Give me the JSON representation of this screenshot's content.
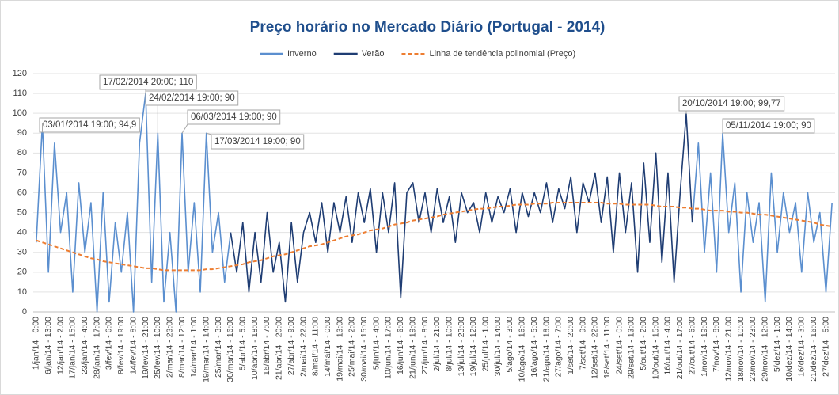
{
  "chart_data": {
    "type": "line",
    "title": "Preço horário no Mercado Diário (Portugal - 2014)",
    "categories": [
      "1/jan/14 - 0:00",
      null,
      "6/jan/14 - 13:00",
      null,
      "12/jan/14 - 2:00",
      null,
      "17/jan/14 - 15:00",
      null,
      "23/jan/14 - 4:00",
      null,
      "28/jan/14 - 17:00",
      null,
      "3/fev/14 - 6:00",
      null,
      "8/fev/14 - 19:00",
      null,
      "14/fev/14 - 8:00",
      null,
      "19/fev/14 - 21:00",
      null,
      "25/fev/14 - 10:00",
      null,
      "2/mar/14 - 23:00",
      null,
      "8/mar/14 - 12:00",
      null,
      "14/mar/14 - 1:00",
      null,
      "19/mar/14 - 14:00",
      null,
      "25/mar/14 - 3:00",
      null,
      "30/mar/14 - 16:00",
      null,
      "5/abr/14 - 5:00",
      null,
      "10/abr/14 - 18:00",
      null,
      "16/abr/14 - 7:00",
      null,
      "21/abr/14 - 20:00",
      null,
      "27/abr/14 - 9:00",
      null,
      "2/mai/14 - 22:00",
      null,
      "8/mai/14 - 11:00",
      null,
      "14/mai/14 - 0:00",
      null,
      "19/mai/14 - 13:00",
      null,
      "25/mai/14 - 2:00",
      null,
      "30/mai/14 - 15:00",
      null,
      "5/jun/14 - 4:00",
      null,
      "10/jun/14 - 17:00",
      null,
      "16/jun/14 - 6:00",
      null,
      "21/jun/14 - 19:00",
      null,
      "27/jun/14 - 8:00",
      null,
      "2/jul/14 - 21:00",
      null,
      "8/jul/14 - 10:00",
      null,
      "13/jul/14 - 23:00",
      null,
      "19/jul/14 - 12:00",
      null,
      "25/jul/14 - 1:00",
      null,
      "30/jul/14 - 14:00",
      null,
      "5/ago/14 - 3:00",
      null,
      "10/ago/14 - 16:00",
      null,
      "16/ago/14 - 5:00",
      null,
      "21/ago/14 - 18:00",
      null,
      "27/ago/14 - 7:00",
      null,
      "1/set/14 - 20:00",
      null,
      "7/set/14 - 9:00",
      null,
      "12/set/14 - 22:00",
      null,
      "18/set/14 - 11:00",
      null,
      "24/set/14 - 0:00",
      null,
      "29/set/14 - 13:00",
      null,
      "5/out/14 - 2:00",
      null,
      "10/out/14 - 15:00",
      null,
      "16/out/14 - 4:00",
      null,
      "21/out/14 - 17:00",
      null,
      "27/out/14 - 6:00",
      null,
      "1/nov/14 - 19:00",
      null,
      "7/nov/14 - 8:00",
      null,
      "12/nov/14 - 21:00",
      null,
      "18/nov/14 - 10:00",
      null,
      "23/nov/14 - 23:00",
      null,
      "29/nov/14 - 12:00",
      null,
      "5/dez/14 - 1:00",
      null,
      "10/dez/14 - 14:00",
      null,
      "16/dez/14 - 3:00",
      null,
      "21/dez/14 - 16:00",
      null,
      "27/dez/14 - 5:00",
      null
    ],
    "series": [
      {
        "name": "Inverno",
        "color": "#5b8fcf",
        "dash": false,
        "values": [
          35,
          94.9,
          20,
          85,
          40,
          60,
          10,
          65,
          30,
          55,
          0,
          60,
          5,
          45,
          20,
          50,
          0,
          85,
          110,
          15,
          90,
          5,
          40,
          0,
          90,
          20,
          55,
          10,
          90,
          30,
          50,
          15,
          40,
          null,
          null,
          null,
          null,
          null,
          null,
          null,
          null,
          null,
          null,
          null,
          null,
          null,
          null,
          null,
          null,
          null,
          null,
          null,
          null,
          null,
          null,
          null,
          null,
          null,
          null,
          null,
          null,
          null,
          null,
          null,
          null,
          null,
          null,
          null,
          null,
          null,
          null,
          null,
          null,
          null,
          null,
          null,
          null,
          null,
          null,
          null,
          null,
          null,
          null,
          null,
          null,
          null,
          null,
          null,
          null,
          null,
          null,
          null,
          null,
          null,
          null,
          null,
          null,
          null,
          null,
          null,
          null,
          null,
          null,
          null,
          null,
          null,
          null,
          null,
          45,
          85,
          30,
          70,
          20,
          90,
          40,
          65,
          10,
          60,
          35,
          55,
          5,
          70,
          30,
          60,
          40,
          55,
          20,
          60,
          35,
          50,
          10,
          55
        ]
      },
      {
        "name": "Verão",
        "color": "#1f3d73",
        "dash": false,
        "values": [
          null,
          null,
          null,
          null,
          null,
          null,
          null,
          null,
          null,
          null,
          null,
          null,
          null,
          null,
          null,
          null,
          null,
          null,
          null,
          null,
          null,
          null,
          null,
          null,
          null,
          null,
          null,
          null,
          null,
          null,
          null,
          null,
          40,
          20,
          45,
          10,
          40,
          15,
          50,
          20,
          35,
          5,
          45,
          15,
          40,
          50,
          35,
          55,
          30,
          55,
          40,
          58,
          35,
          60,
          45,
          62,
          30,
          60,
          40,
          65,
          7,
          60,
          65,
          45,
          60,
          40,
          62,
          45,
          58,
          35,
          60,
          50,
          55,
          40,
          60,
          45,
          58,
          50,
          62,
          40,
          60,
          48,
          60,
          50,
          65,
          45,
          62,
          52,
          68,
          40,
          65,
          55,
          70,
          45,
          68,
          30,
          70,
          40,
          65,
          20,
          75,
          35,
          80,
          25,
          70,
          15,
          60,
          99.77,
          45,
          null,
          null,
          null,
          null,
          null,
          null,
          null,
          null,
          null,
          null,
          null,
          null,
          null,
          null,
          null,
          null,
          null,
          null,
          null,
          null,
          null,
          null,
          null
        ]
      },
      {
        "name": "Linha de tendência polinomial (Preço)",
        "color": "#ed7d31",
        "dash": true,
        "values": [
          36,
          35,
          34,
          33,
          32,
          31,
          30,
          29,
          28,
          27,
          26.5,
          25.5,
          25,
          24.5,
          24,
          23.5,
          23,
          22.5,
          22,
          22,
          21.5,
          21,
          21,
          21,
          21,
          21,
          21,
          21,
          21.5,
          21.5,
          22,
          22.5,
          23,
          23.5,
          24,
          25,
          25.5,
          26,
          27,
          28,
          28.5,
          29,
          30,
          31,
          32,
          33,
          33.5,
          34,
          35,
          36,
          37,
          38,
          38.5,
          39,
          40,
          41,
          41.5,
          42,
          43,
          44,
          44.5,
          45,
          46,
          46.5,
          47,
          47.5,
          48,
          49,
          49.5,
          50,
          50.5,
          51,
          51.5,
          52,
          52,
          52.5,
          53,
          53,
          53.5,
          54,
          54,
          54,
          54.5,
          54.5,
          54.5,
          55,
          55,
          55,
          55,
          55,
          55,
          55,
          55,
          55,
          54.5,
          54.5,
          54.5,
          54,
          54,
          54,
          54,
          54,
          53.5,
          53,
          53,
          53,
          52.5,
          52.5,
          52,
          52,
          51.5,
          51,
          51,
          51,
          50.5,
          50.5,
          50,
          50,
          49.5,
          49,
          49,
          48.5,
          48,
          47.5,
          47,
          46.5,
          46,
          45.5,
          45,
          44,
          43.5,
          43
        ]
      }
    ],
    "annotations": [
      "03/01/2014 19:00; 94,9",
      "17/02/2014 20:00; 110",
      "24/02/2014 19:00; 90",
      "06/03/2014 19:00; 90",
      "17/03/2014 19:00; 90",
      "20/10/2014 19:00; 99,77",
      "05/11/2014 19:00; 90"
    ],
    "ylim": [
      0,
      120
    ],
    "yticks": [
      0,
      10,
      20,
      30,
      40,
      50,
      60,
      70,
      80,
      90,
      100,
      110,
      120
    ],
    "grid": true,
    "legend": "top"
  }
}
